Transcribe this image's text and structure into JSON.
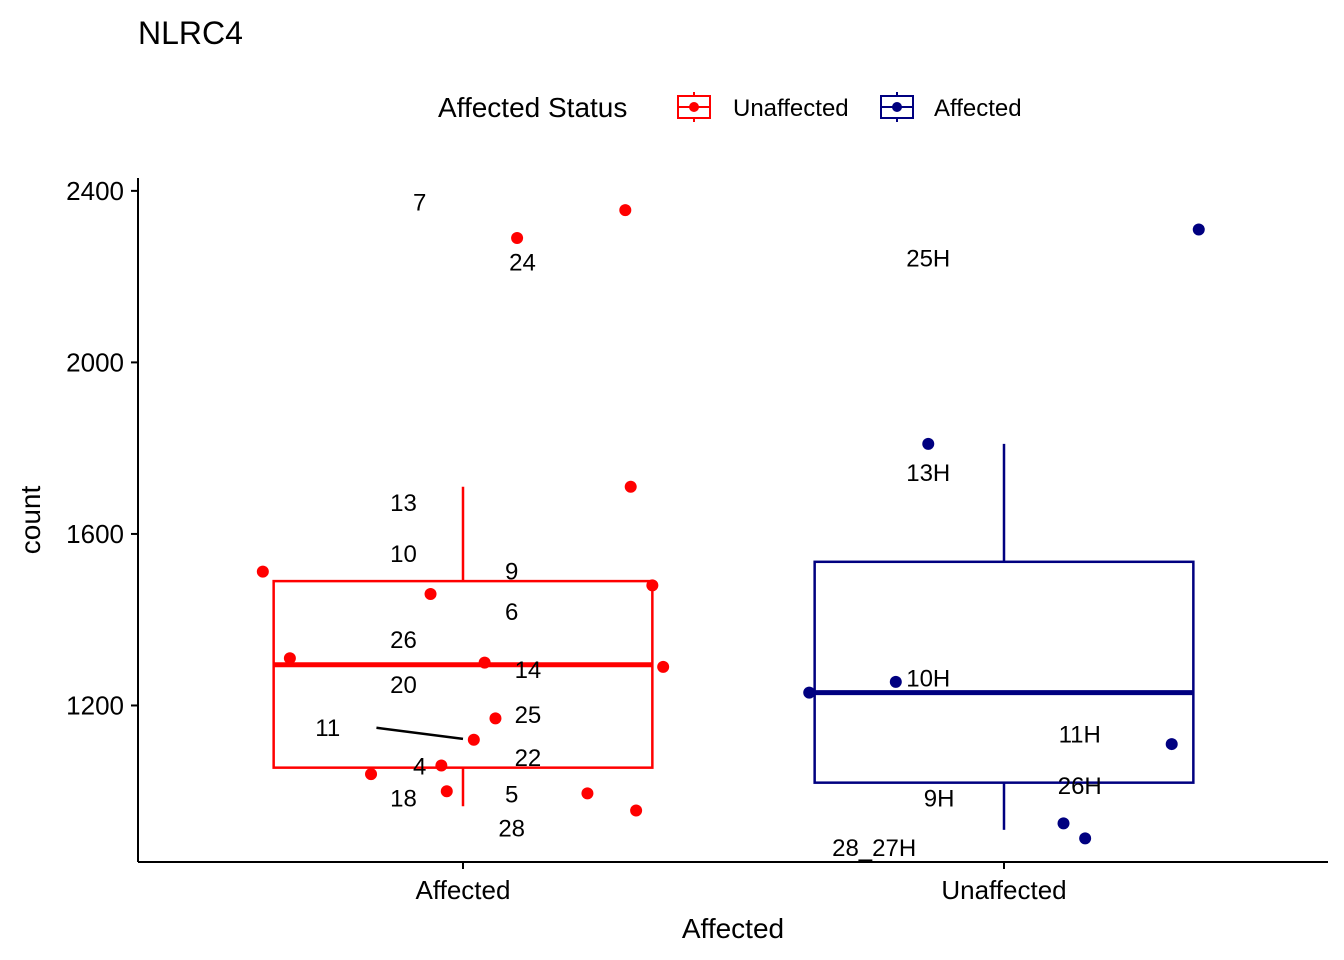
{
  "chart_data": {
    "type": "boxplot",
    "title": "NLRC4",
    "xlabel": "Affected",
    "ylabel": "count",
    "ylim": [
      835,
      2430
    ],
    "yticks": [
      1200,
      1600,
      2000,
      2400
    ],
    "categories": [
      "Affected",
      "Unaffected"
    ],
    "grid": false,
    "legend": {
      "title": "Affected Status",
      "position": "top",
      "entries": [
        {
          "label": "Unaffected",
          "color": "#FF0000"
        },
        {
          "label": "Affected",
          "color": "#000080"
        }
      ]
    },
    "boxes": [
      {
        "category": "Affected",
        "color": "#FF0000",
        "q1": 1055,
        "median": 1295,
        "q3": 1490,
        "whisker_low": 965,
        "whisker_high": 1710
      },
      {
        "category": "Unaffected",
        "color": "#000080",
        "q1": 1020,
        "median": 1230,
        "q3": 1535,
        "whisker_low": 910,
        "whisker_high": 1810
      }
    ],
    "points": [
      {
        "category": "Affected",
        "jitter": 0.3,
        "y": 2355
      },
      {
        "category": "Affected",
        "jitter": 0.1,
        "y": 2290
      },
      {
        "category": "Affected",
        "jitter": 0.31,
        "y": 1710
      },
      {
        "category": "Affected",
        "jitter": -0.37,
        "y": 1512
      },
      {
        "category": "Affected",
        "jitter": 0.35,
        "y": 1480
      },
      {
        "category": "Affected",
        "jitter": -0.06,
        "y": 1460
      },
      {
        "category": "Affected",
        "jitter": -0.32,
        "y": 1310
      },
      {
        "category": "Affected",
        "jitter": 0.04,
        "y": 1300
      },
      {
        "category": "Affected",
        "jitter": 0.37,
        "y": 1290
      },
      {
        "category": "Affected",
        "jitter": 0.06,
        "y": 1170
      },
      {
        "category": "Affected",
        "jitter": 0.02,
        "y": 1120
      },
      {
        "category": "Affected",
        "jitter": -0.04,
        "y": 1060
      },
      {
        "category": "Affected",
        "jitter": -0.17,
        "y": 1040
      },
      {
        "category": "Affected",
        "jitter": -0.03,
        "y": 1000
      },
      {
        "category": "Affected",
        "jitter": 0.23,
        "y": 995
      },
      {
        "category": "Affected",
        "jitter": 0.32,
        "y": 955
      },
      {
        "category": "Unaffected",
        "jitter": 0.36,
        "y": 2310
      },
      {
        "category": "Unaffected",
        "jitter": -0.14,
        "y": 1810
      },
      {
        "category": "Unaffected",
        "jitter": -0.2,
        "y": 1255
      },
      {
        "category": "Unaffected",
        "jitter": -0.36,
        "y": 1230
      },
      {
        "category": "Unaffected",
        "jitter": 0.31,
        "y": 1110
      },
      {
        "category": "Unaffected",
        "jitter": 0.11,
        "y": 925
      },
      {
        "category": "Unaffected",
        "jitter": 0.15,
        "y": 890
      }
    ],
    "annotations": [
      {
        "text": "7",
        "category": "Affected",
        "jitter": -0.08,
        "y": 2375
      },
      {
        "text": "24",
        "category": "Affected",
        "jitter": 0.11,
        "y": 2235
      },
      {
        "text": "13",
        "category": "Affected",
        "jitter": -0.11,
        "y": 1675
      },
      {
        "text": "10",
        "category": "Affected",
        "jitter": -0.11,
        "y": 1555
      },
      {
        "text": "9",
        "category": "Affected",
        "jitter": 0.09,
        "y": 1515
      },
      {
        "text": "6",
        "category": "Affected",
        "jitter": 0.09,
        "y": 1420
      },
      {
        "text": "26",
        "category": "Affected",
        "jitter": -0.11,
        "y": 1355
      },
      {
        "text": "14",
        "category": "Affected",
        "jitter": 0.12,
        "y": 1285
      },
      {
        "text": "20",
        "category": "Affected",
        "jitter": -0.11,
        "y": 1250
      },
      {
        "text": "25",
        "category": "Affected",
        "jitter": 0.12,
        "y": 1180
      },
      {
        "text": "11",
        "category": "Affected",
        "jitter": -0.25,
        "y": 1150
      },
      {
        "text": "22",
        "category": "Affected",
        "jitter": 0.12,
        "y": 1080
      },
      {
        "text": "4",
        "category": "Affected",
        "jitter": -0.08,
        "y": 1060
      },
      {
        "text": "5",
        "category": "Affected",
        "jitter": 0.09,
        "y": 995
      },
      {
        "text": "18",
        "category": "Affected",
        "jitter": -0.11,
        "y": 985
      },
      {
        "text": "28",
        "category": "Affected",
        "jitter": 0.09,
        "y": 915
      },
      {
        "text": "25H",
        "category": "Unaffected",
        "jitter": -0.14,
        "y": 2245
      },
      {
        "text": "13H",
        "category": "Unaffected",
        "jitter": -0.14,
        "y": 1745
      },
      {
        "text": "10H",
        "category": "Unaffected",
        "jitter": -0.14,
        "y": 1265
      },
      {
        "text": "11H",
        "category": "Unaffected",
        "jitter": 0.14,
        "y": 1135
      },
      {
        "text": "26H",
        "category": "Unaffected",
        "jitter": 0.14,
        "y": 1015
      },
      {
        "text": "9H",
        "category": "Unaffected",
        "jitter": -0.12,
        "y": 985
      },
      {
        "text": "28_27H",
        "category": "Unaffected",
        "jitter": -0.24,
        "y": 870
      }
    ],
    "segments": [
      {
        "category": "Affected",
        "from_jitter": -0.16,
        "from_y": 1148,
        "to_jitter": 0.0,
        "to_y": 1122
      }
    ]
  }
}
